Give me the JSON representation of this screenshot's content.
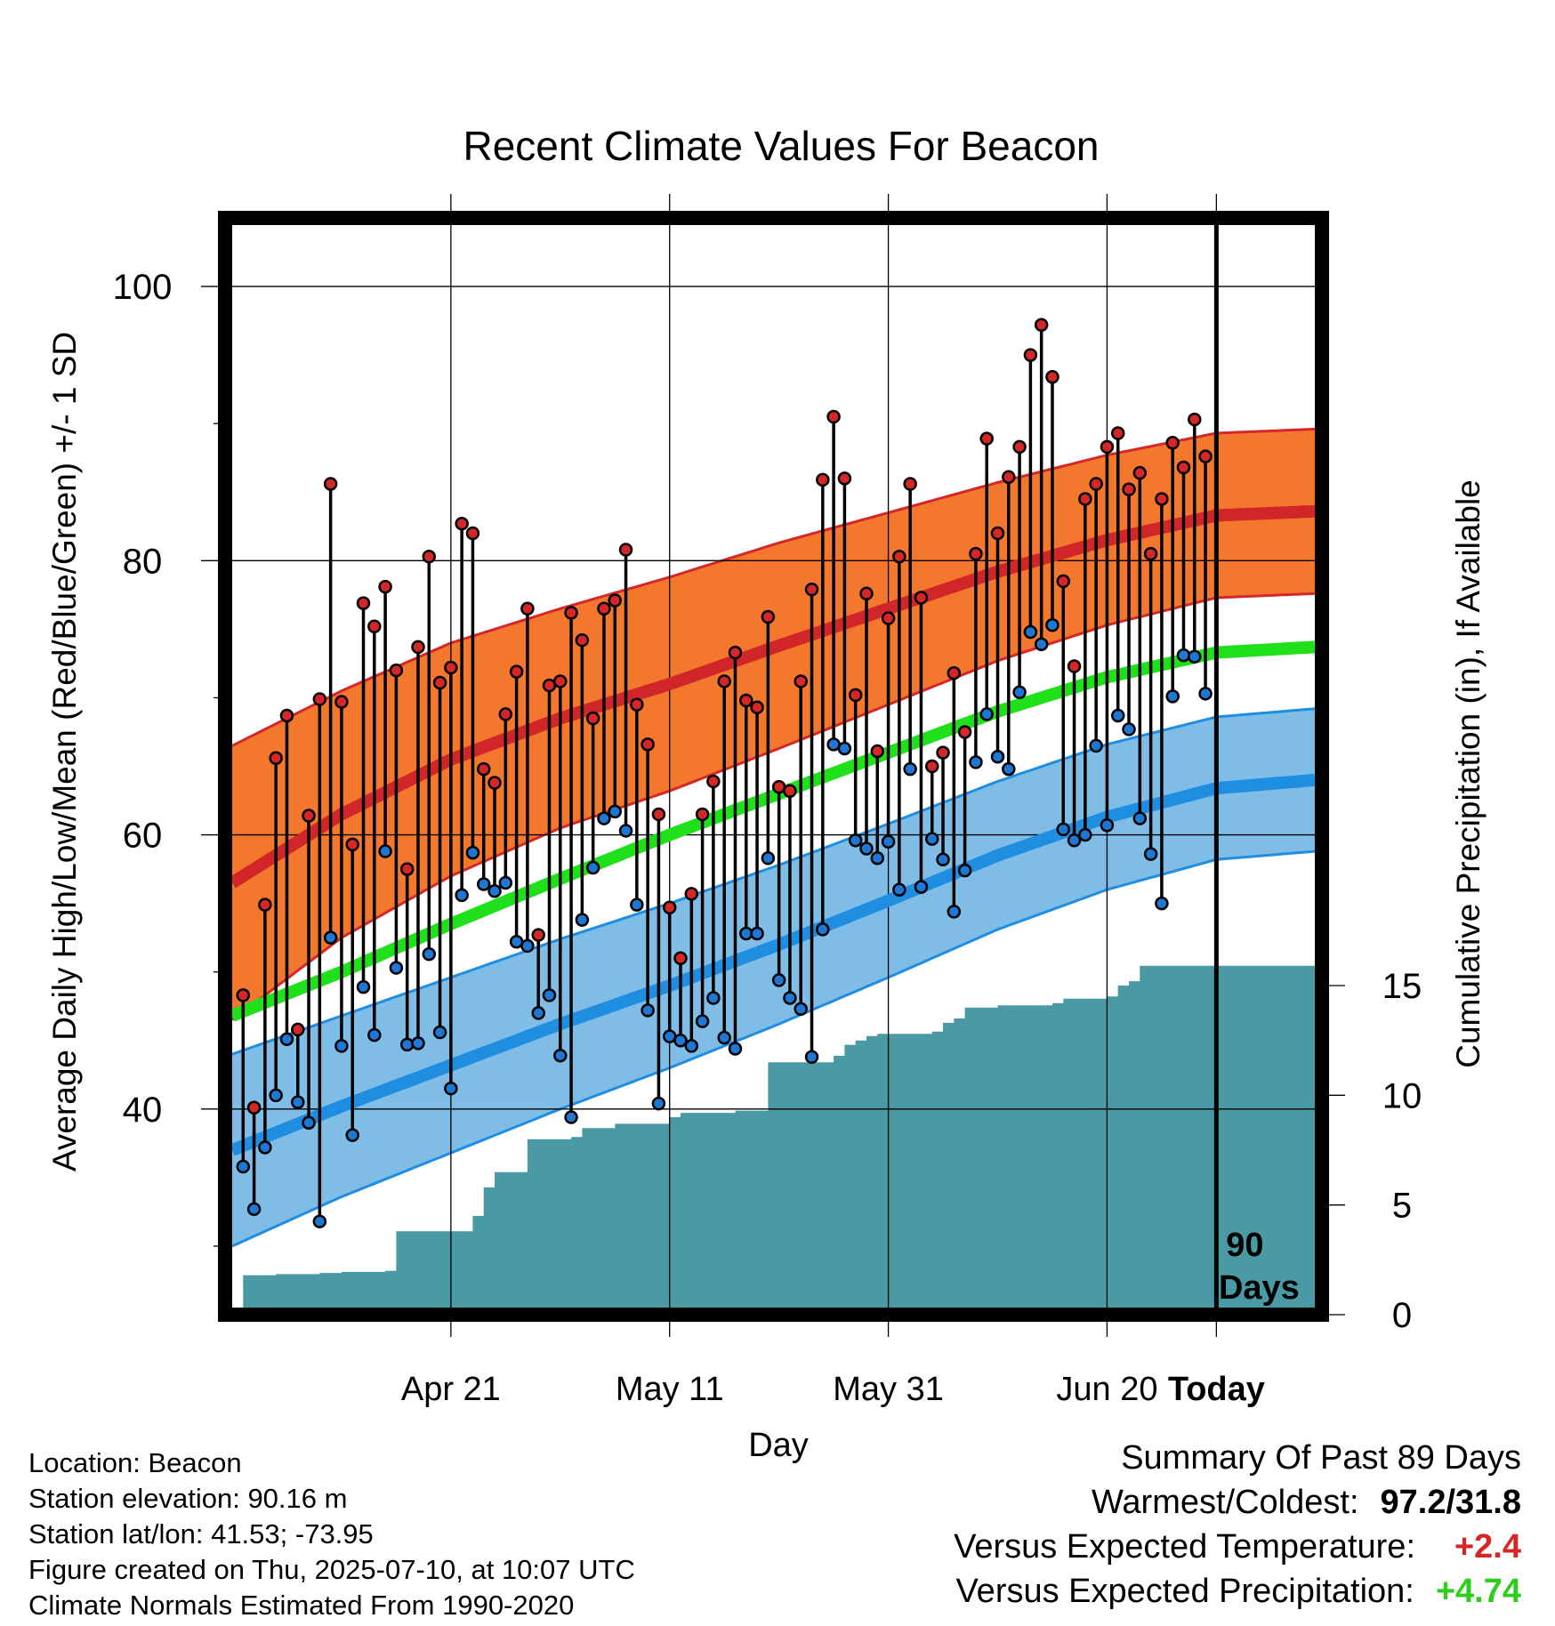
{
  "title": "Recent Climate Values For Beacon",
  "chart_data": {
    "type": "line",
    "title": "Recent Climate Values For Beacon",
    "xlabel": "Day",
    "ylabel": "Average Daily High/Low/Mean (Red/Blue/Green) +/- 1 SD",
    "y2label": "Cumulative Precipitation (in), If Available",
    "ylim": [
      25,
      105
    ],
    "y2lim": [
      0,
      50
    ],
    "x_range_days": [
      -90,
      9
    ],
    "x_ticks": [
      {
        "day": -70,
        "label": "Apr 21"
      },
      {
        "day": -50,
        "label": "May 11"
      },
      {
        "day": -30,
        "label": "May 31"
      },
      {
        "day": -10,
        "label": "Jun 20"
      },
      {
        "day": 0,
        "label": "Today"
      }
    ],
    "y_ticks": [
      40,
      60,
      80,
      100
    ],
    "y2_ticks": [
      0,
      5,
      10,
      15
    ],
    "today_annotation": [
      "90",
      "Days"
    ],
    "normals": {
      "days": [
        -90,
        -80,
        -70,
        -60,
        -50,
        -40,
        -30,
        -20,
        -10,
        0,
        9
      ],
      "high_mean": [
        56.5,
        61.5,
        65.5,
        68.5,
        71.0,
        73.8,
        76.5,
        79.2,
        81.5,
        83.3,
        83.6
      ],
      "high_sd": [
        10.0,
        9.0,
        8.5,
        8.0,
        7.8,
        7.5,
        7.0,
        6.5,
        6.2,
        6.0,
        6.0
      ],
      "mean_mean": [
        46.8,
        50.0,
        53.5,
        56.8,
        60.0,
        63.0,
        66.0,
        69.0,
        71.5,
        73.3,
        73.7
      ],
      "low_mean": [
        37.0,
        40.2,
        43.2,
        46.2,
        49.0,
        52.0,
        55.2,
        58.5,
        61.3,
        63.4,
        64.0
      ],
      "low_sd": [
        7.0,
        6.6,
        6.4,
        6.2,
        6.0,
        5.8,
        5.6,
        5.4,
        5.3,
        5.2,
        5.2
      ]
    },
    "series": [
      {
        "name": "High",
        "color": "#d62728",
        "values": [
          48.3,
          40.1,
          54.9,
          65.6,
          68.7,
          45.8,
          61.4,
          69.9,
          85.6,
          69.7,
          59.3,
          76.9,
          75.2,
          78.1,
          72.0,
          57.5,
          73.7,
          80.3,
          71.1,
          72.2,
          82.7,
          82.0,
          64.8,
          63.8,
          68.8,
          71.9,
          76.5,
          52.7,
          70.9,
          71.2,
          76.2,
          74.2,
          68.5,
          76.5,
          77.1,
          80.8,
          69.5,
          66.6,
          61.5,
          54.7,
          51.0,
          55.7,
          61.5,
          63.9,
          71.2,
          73.3,
          69.8,
          69.3,
          75.9,
          63.5,
          63.2,
          71.2,
          77.9,
          85.9,
          90.5,
          86.0,
          70.2,
          77.6,
          66.1,
          75.8,
          80.3,
          85.6,
          77.3,
          65.0,
          66.0,
          71.8,
          67.5,
          80.5,
          88.9,
          82.0,
          86.1,
          88.3,
          95.0,
          97.2,
          93.4,
          78.5,
          72.3,
          84.5,
          85.6,
          88.3,
          89.3,
          85.2,
          86.4,
          80.5,
          84.5,
          88.6,
          86.8,
          90.3,
          87.6
        ],
        "lows": [
          35.8,
          32.7,
          37.2,
          41.0,
          45.1,
          40.5,
          39.0,
          31.8,
          52.5,
          44.6,
          38.1,
          48.9,
          45.4,
          58.8,
          50.3,
          44.7,
          44.8,
          51.3,
          45.6,
          41.5,
          55.6,
          58.7,
          56.4,
          55.9,
          56.5,
          52.2,
          51.9,
          47.0,
          48.3,
          43.9,
          39.4,
          53.8,
          57.6,
          61.2,
          61.7,
          60.3,
          54.9,
          47.2,
          40.4,
          45.3,
          45.0,
          44.6,
          46.4,
          48.1,
          45.2,
          44.4,
          52.8,
          52.8,
          58.3,
          49.4,
          48.1,
          47.3,
          43.8,
          53.1,
          66.6,
          66.3,
          59.6,
          59.0,
          58.3,
          59.5,
          56.0,
          64.8,
          56.2,
          59.7,
          58.2,
          54.4,
          57.4,
          65.3,
          68.8,
          65.7,
          64.8,
          70.4,
          74.8,
          73.9,
          75.3,
          60.4,
          59.6,
          60.0,
          66.5,
          60.7,
          68.7,
          67.7,
          61.2,
          58.6,
          55.0,
          70.1,
          73.1,
          73.0,
          70.3
        ]
      },
      {
        "name": "Low",
        "color": "#1f77d4"
      },
      {
        "name": "Cumulative Precipitation",
        "color": "#4a9aa5",
        "values": [
          0.0,
          1.8,
          1.8,
          1.8,
          1.85,
          1.85,
          1.85,
          1.85,
          1.9,
          1.9,
          1.95,
          1.95,
          1.95,
          1.95,
          2.0,
          3.8,
          3.8,
          3.8,
          3.8,
          3.8,
          3.8,
          3.8,
          4.5,
          5.8,
          6.5,
          6.5,
          6.5,
          8.0,
          8.0,
          8.0,
          8.0,
          8.1,
          8.5,
          8.5,
          8.5,
          8.7,
          8.7,
          8.7,
          8.7,
          8.7,
          9.0,
          9.2,
          9.2,
          9.2,
          9.2,
          9.2,
          9.3,
          9.3,
          9.3,
          11.5,
          11.5,
          11.5,
          11.5,
          11.5,
          11.5,
          11.8,
          12.3,
          12.5,
          12.7,
          12.8,
          12.8,
          12.8,
          12.8,
          12.8,
          12.9,
          13.3,
          13.5,
          14.0,
          14.0,
          14.0,
          14.1,
          14.1,
          14.1,
          14.1,
          14.1,
          14.2,
          14.4,
          14.4,
          14.4,
          14.4,
          14.5,
          15.0,
          15.2,
          15.9,
          15.9,
          15.9,
          15.9,
          15.9,
          15.9
        ]
      }
    ],
    "grid": true
  },
  "info": {
    "location": "Location: Beacon",
    "elevation": "Station elevation: 90.16 m",
    "latlon": "Station lat/lon: 41.53; -73.95",
    "created": "Figure created on Thu, 2025-07-10, at 10:07 UTC",
    "normals_period": "Climate Normals Estimated From 1990-2020"
  },
  "summary": {
    "title": "Summary Of Past 89 Days",
    "warm_cold_label": "Warmest/Coldest:",
    "warm_cold_value": "97.2/31.8",
    "temp_label": "Versus Expected Temperature:",
    "temp_value": "+2.4",
    "precip_label": "Versus Expected Precipitation:",
    "precip_value": "+4.74"
  }
}
